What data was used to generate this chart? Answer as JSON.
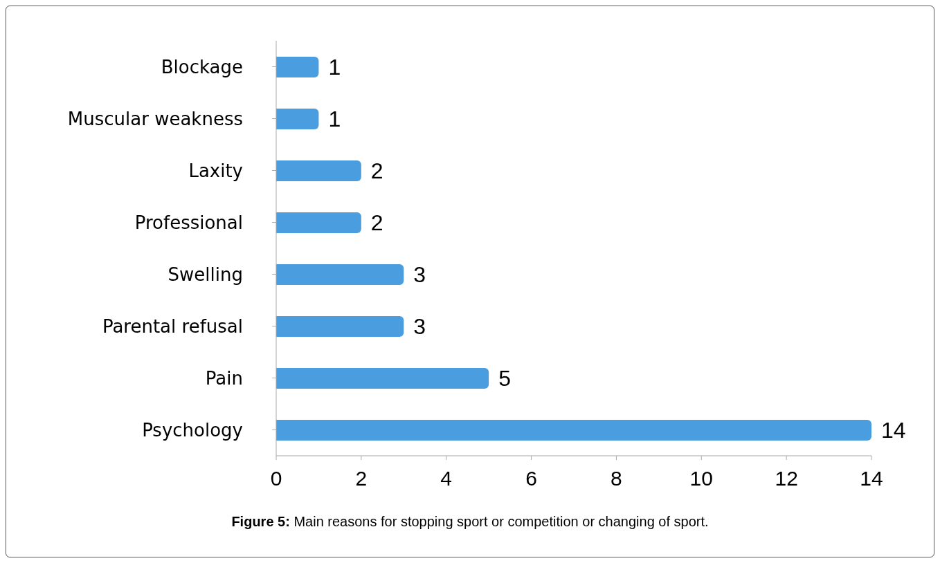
{
  "chart_data": {
    "type": "bar",
    "orientation": "horizontal",
    "categories": [
      "Blockage",
      "Muscular weakness",
      "Laxity",
      "Professional",
      "Swelling",
      "Parental refusal",
      "Pain",
      "Psychology"
    ],
    "values": [
      1,
      1,
      2,
      2,
      3,
      3,
      5,
      14
    ],
    "color": "#4a9ee0",
    "xlim": [
      0,
      14
    ],
    "xticks": [
      0,
      2,
      4,
      6,
      8,
      10,
      12,
      14
    ],
    "data_labels": true,
    "grid": false,
    "legend": false,
    "annotations": [
      "Figure 5: Main reasons for stopping sport or competition or changing of sport."
    ]
  }
}
